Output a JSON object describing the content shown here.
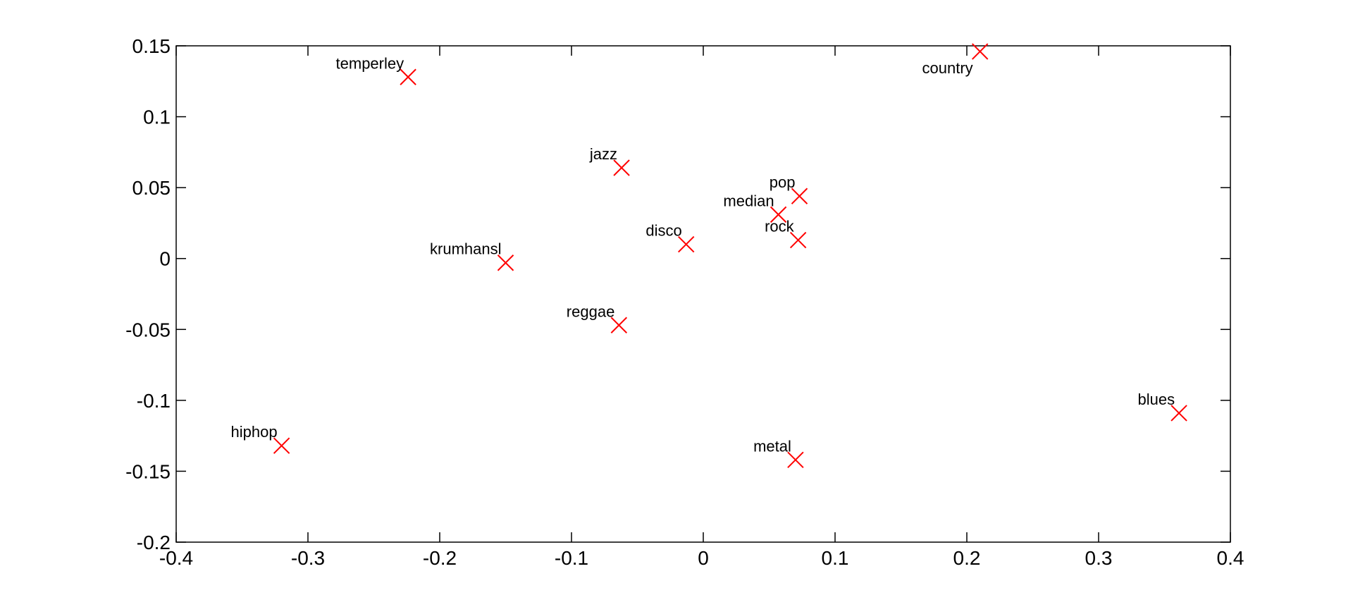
{
  "chart_data": {
    "type": "scatter",
    "title": "",
    "xlabel": "",
    "ylabel": "",
    "xlim": [
      -0.4,
      0.4
    ],
    "ylim": [
      -0.2,
      0.15
    ],
    "x_ticks": [
      -0.4,
      -0.3,
      -0.2,
      -0.1,
      0,
      0.1,
      0.2,
      0.3,
      0.4
    ],
    "x_tick_labels": [
      "-0.4",
      "-0.3",
      "-0.2",
      "-0.1",
      "0",
      "0.1",
      "0.2",
      "0.3",
      "0.4"
    ],
    "y_ticks": [
      0.15,
      0.1,
      0.05,
      0,
      -0.05,
      -0.1,
      -0.15,
      -0.2
    ],
    "y_tick_labels": [
      "0.15",
      "0.1",
      "0.05",
      "0",
      "-0.05",
      "-0.1",
      "-0.15",
      "-0.2"
    ],
    "grid": false,
    "legend": "none",
    "marker": "x",
    "marker_color": "#ff0000",
    "points": [
      {
        "label": "temperley",
        "x": -0.224,
        "y": 0.128,
        "label_side": "upper-left"
      },
      {
        "label": "country",
        "x": 0.21,
        "y": 0.146,
        "label_side": "lower-left"
      },
      {
        "label": "jazz",
        "x": -0.062,
        "y": 0.064,
        "label_side": "upper-left"
      },
      {
        "label": "pop",
        "x": 0.073,
        "y": 0.044,
        "label_side": "upper-left"
      },
      {
        "label": "median",
        "x": 0.057,
        "y": 0.031,
        "label_side": "upper-left"
      },
      {
        "label": "disco",
        "x": -0.013,
        "y": 0.01,
        "label_side": "upper-left"
      },
      {
        "label": "rock",
        "x": 0.072,
        "y": 0.013,
        "label_side": "upper-left"
      },
      {
        "label": "krumhansl",
        "x": -0.15,
        "y": -0.003,
        "label_side": "upper-left"
      },
      {
        "label": "reggae",
        "x": -0.064,
        "y": -0.047,
        "label_side": "upper-left"
      },
      {
        "label": "blues",
        "x": 0.361,
        "y": -0.109,
        "label_side": "upper-left"
      },
      {
        "label": "hiphop",
        "x": -0.32,
        "y": -0.132,
        "label_side": "upper-left"
      },
      {
        "label": "metal",
        "x": 0.07,
        "y": -0.142,
        "label_side": "upper-left"
      }
    ]
  }
}
